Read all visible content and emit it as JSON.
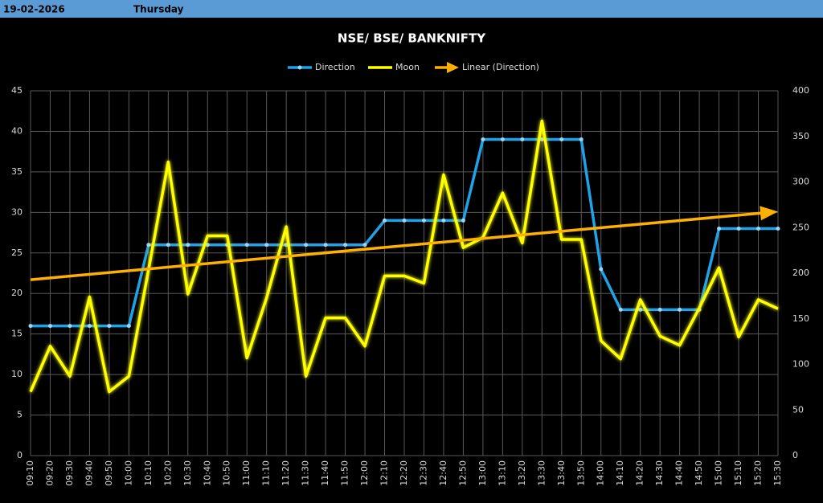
{
  "header": {
    "date": "19-02-2026",
    "day": "Thursday"
  },
  "chart_data": {
    "type": "line",
    "title": "NSE/ BSE/ BANKNIFTY",
    "categories": [
      "09:10",
      "09:20",
      "09:30",
      "09:40",
      "09:50",
      "10:00",
      "10:10",
      "10:20",
      "10:30",
      "10:40",
      "10:50",
      "11:00",
      "11:10",
      "11:20",
      "11:30",
      "11:40",
      "11:50",
      "12:00",
      "12:10",
      "12:20",
      "12:30",
      "12:40",
      "12:50",
      "13:00",
      "13:10",
      "13:20",
      "13:30",
      "13:40",
      "13:50",
      "14:00",
      "14:10",
      "14:20",
      "14:30",
      "14:40",
      "14:50",
      "15:00",
      "15:10",
      "15:20",
      "15:30"
    ],
    "series": [
      {
        "name": "Direction",
        "color": "#1fa3e8",
        "values": [
          16,
          16,
          16,
          16,
          16,
          16,
          26,
          26,
          26,
          26,
          26,
          26,
          26,
          26,
          26,
          26,
          26,
          26,
          29,
          29,
          29,
          29,
          29,
          39,
          39,
          39,
          39,
          39,
          39,
          23,
          18,
          18,
          18,
          18,
          18,
          28,
          28,
          28,
          28
        ]
      },
      {
        "name": "Moon",
        "color": "#ffff00",
        "axis": "y2",
        "values": [
          70,
          120,
          87,
          174,
          70,
          87,
          204,
          322,
          177,
          241,
          241,
          107,
          173,
          251,
          87,
          151,
          151,
          120,
          197,
          197,
          189,
          308,
          228,
          239,
          288,
          233,
          367,
          237,
          237,
          126,
          106,
          171,
          131,
          121,
          162,
          206,
          130,
          171,
          161
        ]
      }
    ],
    "trendline": {
      "name": "Linear (Direction)",
      "color": "#ffb000",
      "start": 21.7,
      "end": 30.1
    },
    "ylim": [
      0,
      45
    ],
    "yticks": [
      0,
      5,
      10,
      15,
      20,
      25,
      30,
      35,
      40,
      45
    ],
    "y2lim": [
      0,
      400
    ],
    "y2ticks": [
      0,
      50,
      100,
      150,
      200,
      250,
      300,
      350,
      400
    ],
    "grid": true
  }
}
